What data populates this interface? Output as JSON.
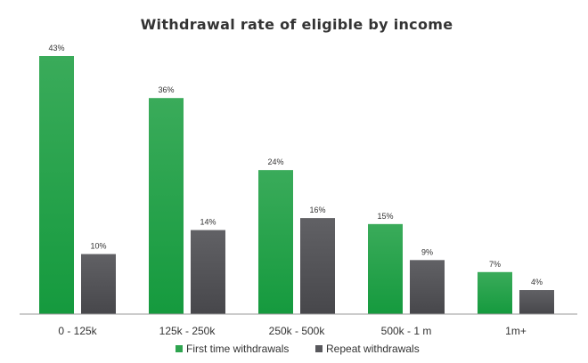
{
  "chart_data": {
    "type": "bar",
    "title": "Withdrawal rate of eligible by income",
    "categories": [
      "0 - 125k",
      "125k - 250k",
      "250k - 500k",
      "500k - 1 m",
      "1m+"
    ],
    "series": [
      {
        "name": "First time withdrawals",
        "color": "#2ea44f",
        "values": [
          43,
          36,
          24,
          15,
          7
        ],
        "labels": [
          "43%",
          "36%",
          "24%",
          "15%",
          "7%"
        ]
      },
      {
        "name": "Repeat withdrawals",
        "color": "#58585c",
        "values": [
          10,
          14,
          16,
          9,
          4
        ],
        "labels": [
          "10%",
          "14%",
          "16%",
          "9%",
          "4%"
        ]
      }
    ],
    "ylim": [
      0,
      43
    ],
    "grid": false,
    "legend_position": "bottom"
  }
}
